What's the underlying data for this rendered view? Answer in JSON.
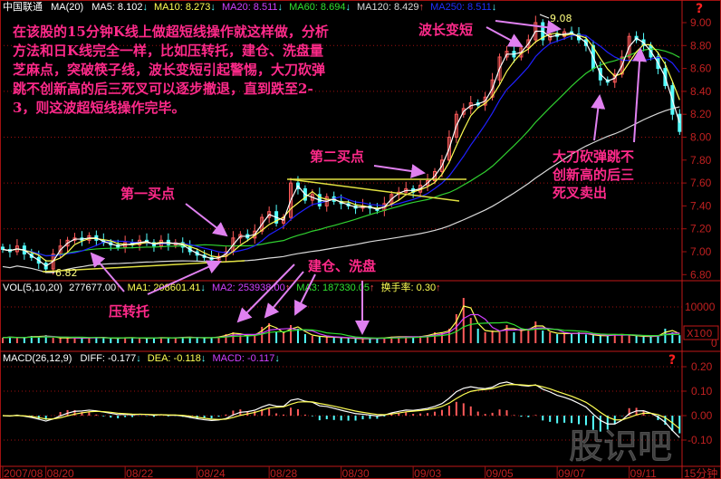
{
  "header": {
    "stock": "中国联通",
    "ma_label": "MA(20)",
    "ma5": "MA5: 8.102",
    "ma5_arrow": "↓",
    "ma10": "MA10: 8.273",
    "ma10_arrow": "↓",
    "ma20": "MA20: 8.511",
    "ma20_arrow": "↓",
    "ma60": "MA60: 8.694",
    "ma60_arrow": "↓",
    "ma120": "MA120: 8.429",
    "ma120_arrow": "↑",
    "ma250": "MA250: 8.511",
    "ma250_arrow": "↓",
    "help": "?"
  },
  "volume_header": {
    "label": "VOL(5,10,20)",
    "vol": "277677.00",
    "vol_arrow": "↑",
    "ma1": "MA1: 208601.41",
    "ma1_arrow": "↓",
    "ma2": "MA2: 253938.00",
    "ma2_arrow": "↑",
    "ma3": "MA3: 187330.05",
    "ma3_arrow": "↑",
    "turnover": "换手率: 0.30",
    "turnover_arrow": "↑",
    "unit": "X100"
  },
  "macd_header": {
    "label": "MACD(26,12,9)",
    "diff": "DIFF: -0.177",
    "diff_arrow": "↓",
    "dea": "DEA: -0.118",
    "dea_arrow": "↓",
    "macd": "MACD: -0.117",
    "macd_arrow": "↓",
    "help": "?"
  },
  "annotations": {
    "intro": [
      "在该股的15分钟K线上做超短线操作就这样做，分析",
      "方法和日K线完全一样，比如压转托，建仓、洗盘量",
      "芝麻点，突破筷子线，波长变短引起警惕，大刀砍弹",
      "跳不创新高的后三死叉可以逐步撤退，直到跌至2-",
      "3，则这波超短线操作完毕。"
    ],
    "wave_shorten": "波长变短",
    "first_buy": "第一买点",
    "second_buy": "第二买点",
    "pressure_support": "压转托",
    "build_wash": "建仓、洗盘",
    "sell": [
      "大刀砍弹跳不",
      "创新高的后三",
      "死叉卖出"
    ]
  },
  "watermark": "股识吧",
  "chart_data": {
    "type": "candlestick",
    "period": "15分钟",
    "high_label": "9.08",
    "low_label": "6.82",
    "price_ylim": [
      6.8,
      9.0
    ],
    "price_ticks": [
      "9.00",
      "8.80",
      "8.60",
      "8.40",
      "8.20",
      "8.00",
      "7.80",
      "7.60",
      "7.40",
      "7.20",
      "7.00",
      "6.80"
    ],
    "volume_ticks": [
      "10000",
      "0"
    ],
    "macd_ticks": [
      "0.20",
      "0.10",
      "0.00",
      "-0.10"
    ],
    "date_labels": [
      {
        "label": "2007/08",
        "bar": 0
      },
      {
        "label": "08/20",
        "bar": 6
      },
      {
        "label": "08/22",
        "bar": 17
      },
      {
        "label": "08/24",
        "bar": 27
      },
      {
        "label": "08/28",
        "bar": 37
      },
      {
        "label": "08/30",
        "bar": 47
      },
      {
        "label": "09/03",
        "bar": 57
      },
      {
        "label": "09/05",
        "bar": 67
      },
      {
        "label": "09/07",
        "bar": 77
      },
      {
        "label": "09/11",
        "bar": 87
      }
    ],
    "closes": [
      7.02,
      7.0,
      7.05,
      6.98,
      6.95,
      6.9,
      6.85,
      6.98,
      7.05,
      7.1,
      7.12,
      7.1,
      7.14,
      7.1,
      7.08,
      7.06,
      7.04,
      7.08,
      7.06,
      7.1,
      7.08,
      7.05,
      7.1,
      7.06,
      7.08,
      7.04,
      7.0,
      6.97,
      6.95,
      6.93,
      6.96,
      7.0,
      7.12,
      7.15,
      7.12,
      7.18,
      7.3,
      7.35,
      7.25,
      7.3,
      7.6,
      7.55,
      7.45,
      7.5,
      7.4,
      7.48,
      7.44,
      7.42,
      7.4,
      7.38,
      7.4,
      7.38,
      7.36,
      7.42,
      7.5,
      7.52,
      7.55,
      7.52,
      7.58,
      7.62,
      7.7,
      7.8,
      8.0,
      8.2,
      8.25,
      8.3,
      8.28,
      8.35,
      8.5,
      8.7,
      8.75,
      8.7,
      8.78,
      8.85,
      9.0,
      8.85,
      8.9,
      8.88,
      8.92,
      8.9,
      8.85,
      8.8,
      8.6,
      8.5,
      8.48,
      8.55,
      8.7,
      8.88,
      8.85,
      8.8,
      8.7,
      8.6,
      8.45,
      8.2,
      8.05
    ],
    "volumes": [
      1500,
      1800,
      1400,
      1600,
      2000,
      1700,
      2200,
      1500,
      1400,
      1600,
      1300,
      1500,
      1400,
      1700,
      1500,
      1300,
      1400,
      1600,
      1500,
      1400,
      1300,
      1500,
      1600,
      1400,
      1500,
      1700,
      1600,
      1500,
      1400,
      1600,
      1800,
      2500,
      3000,
      2200,
      2000,
      2400,
      4500,
      5500,
      3000,
      2800,
      5000,
      4000,
      2500,
      2000,
      1800,
      1700,
      1600,
      1500,
      1400,
      1300,
      1200,
      1300,
      1400,
      1500,
      1800,
      1700,
      1900,
      1600,
      2000,
      2200,
      3000,
      2800,
      4000,
      8000,
      12500,
      7000,
      4000,
      3000,
      3500,
      3000,
      5000,
      3000,
      4000,
      3500,
      6000,
      3500,
      3000,
      2500,
      2800,
      2500,
      3000,
      2400,
      2200,
      2000,
      2100,
      2500,
      2300,
      2200,
      2000,
      1800,
      1900,
      2000,
      4000,
      3000,
      2200
    ],
    "colors": {
      "up": "#ff5a5a",
      "down": "#54ffff",
      "ma5": "#ffffff",
      "ma10": "#ffff54",
      "ma20": "#2020ff",
      "ma60": "#30d030",
      "ma120": "#d8d8d8",
      "grid": "#a01010"
    }
  }
}
